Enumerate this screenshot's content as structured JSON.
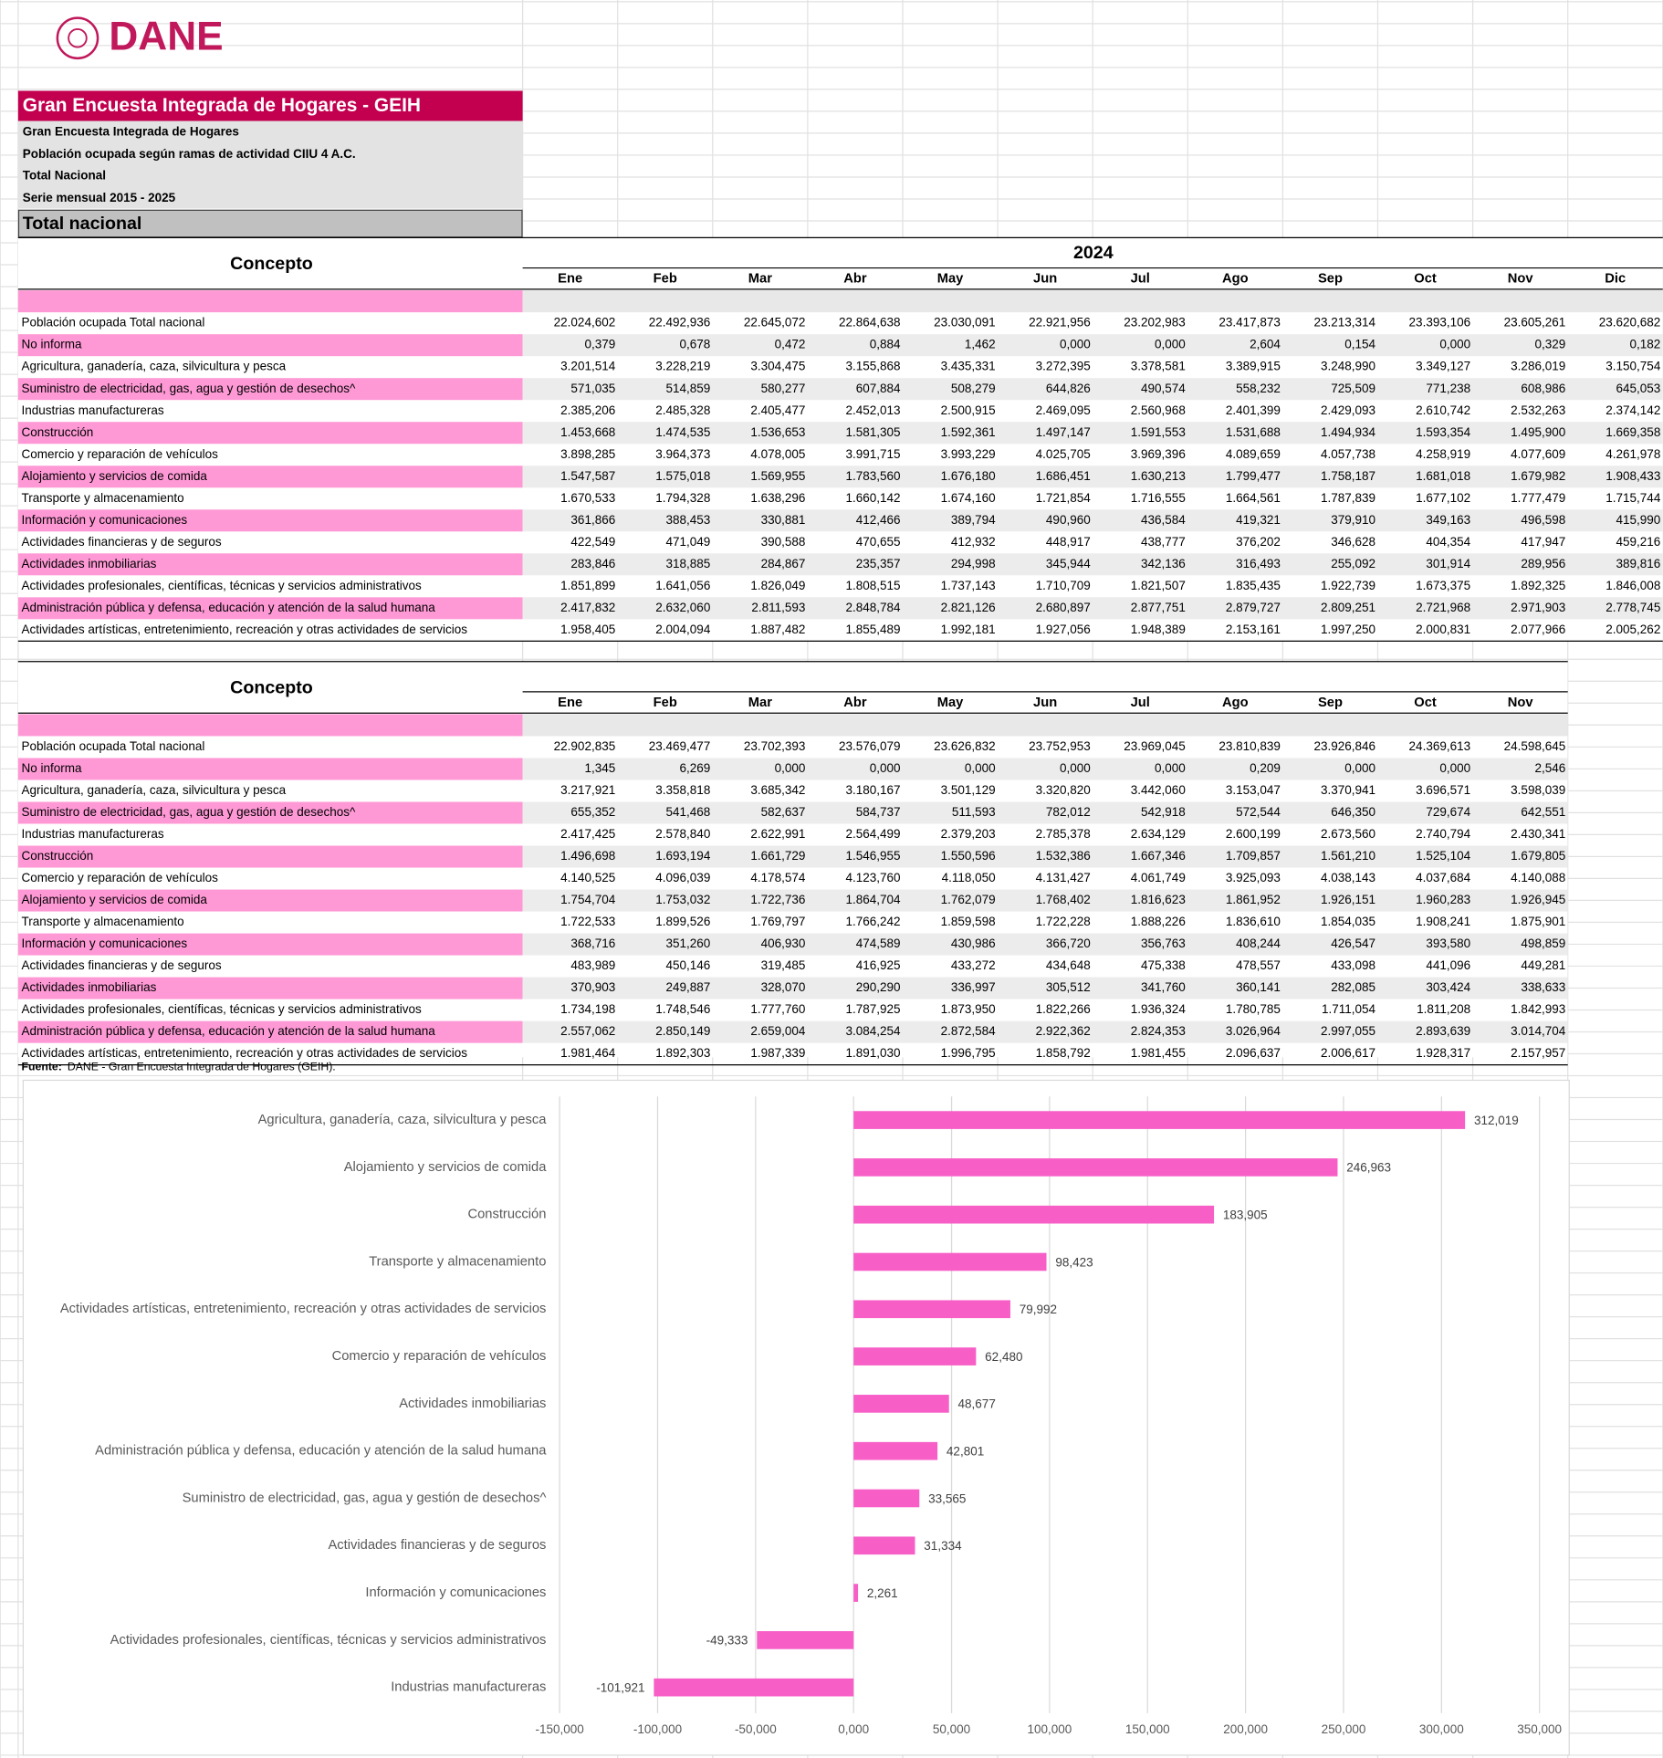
{
  "header": {
    "logo": "DANE",
    "title": "Gran Encuesta Integrada de Hogares - GEIH",
    "subtitles": [
      "Gran Encuesta Integrada de Hogares",
      "Población ocupada según ramas de actividad CIIU 4 A.C.",
      "Total Nacional",
      "Serie mensual 2015 - 2025"
    ],
    "section": "Total nacional"
  },
  "table1": {
    "concept": "Concepto",
    "year": "2024",
    "columns": [
      "Ene",
      "Feb",
      "Mar",
      "Abr",
      "May",
      "Jun",
      "Jul",
      "Ago",
      "Sep",
      "Oct",
      "Nov",
      "Dic"
    ],
    "rows": [
      {
        "label": "Población ocupada Total nacional",
        "values": [
          "22.024,602",
          "22.492,936",
          "22.645,072",
          "22.864,638",
          "23.030,091",
          "22.921,956",
          "23.202,983",
          "23.417,873",
          "23.213,314",
          "23.393,106",
          "23.605,261",
          "23.620,682"
        ]
      },
      {
        "label": "No informa",
        "values": [
          "0,379",
          "0,678",
          "0,472",
          "0,884",
          "1,462",
          "0,000",
          "0,000",
          "2,604",
          "0,154",
          "0,000",
          "0,329",
          "0,182"
        ]
      },
      {
        "label": "Agricultura, ganadería, caza, silvicultura y pesca",
        "values": [
          "3.201,514",
          "3.228,219",
          "3.304,475",
          "3.155,868",
          "3.435,331",
          "3.272,395",
          "3.378,581",
          "3.389,915",
          "3.248,990",
          "3.349,127",
          "3.286,019",
          "3.150,754"
        ]
      },
      {
        "label": "Suministro de electricidad, gas, agua y gestión de desechos^",
        "values": [
          "571,035",
          "514,859",
          "580,277",
          "607,884",
          "508,279",
          "644,826",
          "490,574",
          "558,232",
          "725,509",
          "771,238",
          "608,986",
          "645,053"
        ]
      },
      {
        "label": "Industrias manufactureras",
        "values": [
          "2.385,206",
          "2.485,328",
          "2.405,477",
          "2.452,013",
          "2.500,915",
          "2.469,095",
          "2.560,968",
          "2.401,399",
          "2.429,093",
          "2.610,742",
          "2.532,263",
          "2.374,142"
        ]
      },
      {
        "label": "Construcción",
        "values": [
          "1.453,668",
          "1.474,535",
          "1.536,653",
          "1.581,305",
          "1.592,361",
          "1.497,147",
          "1.591,553",
          "1.531,688",
          "1.494,934",
          "1.593,354",
          "1.495,900",
          "1.669,358"
        ]
      },
      {
        "label": "Comercio y reparación de vehículos",
        "values": [
          "3.898,285",
          "3.964,373",
          "4.078,005",
          "3.991,715",
          "3.993,229",
          "4.025,705",
          "3.969,396",
          "4.089,659",
          "4.057,738",
          "4.258,919",
          "4.077,609",
          "4.261,978"
        ]
      },
      {
        "label": "Alojamiento y servicios de comida",
        "values": [
          "1.547,587",
          "1.575,018",
          "1.569,955",
          "1.783,560",
          "1.676,180",
          "1.686,451",
          "1.630,213",
          "1.799,477",
          "1.758,187",
          "1.681,018",
          "1.679,982",
          "1.908,433"
        ]
      },
      {
        "label": "Transporte y almacenamiento",
        "values": [
          "1.670,533",
          "1.794,328",
          "1.638,296",
          "1.660,142",
          "1.674,160",
          "1.721,854",
          "1.716,555",
          "1.664,561",
          "1.787,839",
          "1.677,102",
          "1.777,479",
          "1.715,744"
        ]
      },
      {
        "label": "Información y comunicaciones",
        "values": [
          "361,866",
          "388,453",
          "330,881",
          "412,466",
          "389,794",
          "490,960",
          "436,584",
          "419,321",
          "379,910",
          "349,163",
          "496,598",
          "415,990"
        ]
      },
      {
        "label": "Actividades financieras y de seguros",
        "values": [
          "422,549",
          "471,049",
          "390,588",
          "470,655",
          "412,932",
          "448,917",
          "438,777",
          "376,202",
          "346,628",
          "404,354",
          "417,947",
          "459,216"
        ]
      },
      {
        "label": "Actividades inmobiliarias",
        "values": [
          "283,846",
          "318,885",
          "284,867",
          "235,357",
          "294,998",
          "345,944",
          "342,136",
          "316,493",
          "255,092",
          "301,914",
          "289,956",
          "389,816"
        ]
      },
      {
        "label": "Actividades profesionales, científicas, técnicas y servicios administrativos",
        "values": [
          "1.851,899",
          "1.641,056",
          "1.826,049",
          "1.808,515",
          "1.737,143",
          "1.710,709",
          "1.821,507",
          "1.835,435",
          "1.922,739",
          "1.673,375",
          "1.892,325",
          "1.846,008"
        ]
      },
      {
        "label": "Administración pública y defensa, educación y atención de la salud humana",
        "values": [
          "2.417,832",
          "2.632,060",
          "2.811,593",
          "2.848,784",
          "2.821,126",
          "2.680,897",
          "2.877,751",
          "2.879,727",
          "2.809,251",
          "2.721,968",
          "2.971,903",
          "2.778,745"
        ]
      },
      {
        "label": "Actividades artísticas, entretenimiento, recreación y otras actividades de servicios",
        "values": [
          "1.958,405",
          "2.004,094",
          "1.887,482",
          "1.855,489",
          "1.992,181",
          "1.927,056",
          "1.948,389",
          "2.153,161",
          "1.997,250",
          "2.000,831",
          "2.077,966",
          "2.005,262"
        ]
      }
    ]
  },
  "table2": {
    "concept": "Concepto",
    "columns": [
      "Ene",
      "Feb",
      "Mar",
      "Abr",
      "May",
      "Jun",
      "Jul",
      "Ago",
      "Sep",
      "Oct",
      "Nov"
    ],
    "rows": [
      {
        "label": "Población ocupada Total nacional",
        "values": [
          "22.902,835",
          "23.469,477",
          "23.702,393",
          "23.576,079",
          "23.626,832",
          "23.752,953",
          "23.969,045",
          "23.810,839",
          "23.926,846",
          "24.369,613",
          "24.598,645"
        ]
      },
      {
        "label": "No informa",
        "values": [
          "1,345",
          "6,269",
          "0,000",
          "0,000",
          "0,000",
          "0,000",
          "0,000",
          "0,209",
          "0,000",
          "0,000",
          "2,546"
        ]
      },
      {
        "label": "Agricultura, ganadería, caza, silvicultura y pesca",
        "values": [
          "3.217,921",
          "3.358,818",
          "3.685,342",
          "3.180,167",
          "3.501,129",
          "3.320,820",
          "3.442,060",
          "3.153,047",
          "3.370,941",
          "3.696,571",
          "3.598,039"
        ]
      },
      {
        "label": "Suministro de electricidad, gas, agua y gestión de desechos^",
        "values": [
          "655,352",
          "541,468",
          "582,637",
          "584,737",
          "511,593",
          "782,012",
          "542,918",
          "572,544",
          "646,350",
          "729,674",
          "642,551"
        ]
      },
      {
        "label": "Industrias manufactureras",
        "values": [
          "2.417,425",
          "2.578,840",
          "2.622,991",
          "2.564,499",
          "2.379,203",
          "2.785,378",
          "2.634,129",
          "2.600,199",
          "2.673,560",
          "2.740,794",
          "2.430,341"
        ]
      },
      {
        "label": "Construcción",
        "values": [
          "1.496,698",
          "1.693,194",
          "1.661,729",
          "1.546,955",
          "1.550,596",
          "1.532,386",
          "1.667,346",
          "1.709,857",
          "1.561,210",
          "1.525,104",
          "1.679,805"
        ]
      },
      {
        "label": "Comercio y reparación de vehículos",
        "values": [
          "4.140,525",
          "4.096,039",
          "4.178,574",
          "4.123,760",
          "4.118,050",
          "4.131,427",
          "4.061,749",
          "3.925,093",
          "4.038,143",
          "4.037,684",
          "4.140,088"
        ]
      },
      {
        "label": "Alojamiento y servicios de comida",
        "values": [
          "1.754,704",
          "1.753,032",
          "1.722,736",
          "1.864,704",
          "1.762,079",
          "1.768,402",
          "1.816,623",
          "1.861,952",
          "1.926,151",
          "1.960,283",
          "1.926,945"
        ]
      },
      {
        "label": "Transporte y almacenamiento",
        "values": [
          "1.722,533",
          "1.899,526",
          "1.769,797",
          "1.766,242",
          "1.859,598",
          "1.722,228",
          "1.888,226",
          "1.836,610",
          "1.854,035",
          "1.908,241",
          "1.875,901"
        ]
      },
      {
        "label": "Información y comunicaciones",
        "values": [
          "368,716",
          "351,260",
          "406,930",
          "474,589",
          "430,986",
          "366,720",
          "356,763",
          "408,244",
          "426,547",
          "393,580",
          "498,859"
        ]
      },
      {
        "label": "Actividades financieras y de seguros",
        "values": [
          "483,989",
          "450,146",
          "319,485",
          "416,925",
          "433,272",
          "434,648",
          "475,338",
          "478,557",
          "433,098",
          "441,096",
          "449,281"
        ]
      },
      {
        "label": "Actividades inmobiliarias",
        "values": [
          "370,903",
          "249,887",
          "328,070",
          "290,290",
          "336,997",
          "305,512",
          "341,760",
          "360,141",
          "282,085",
          "303,424",
          "338,633"
        ]
      },
      {
        "label": "Actividades profesionales, científicas, técnicas y servicios administrativos",
        "values": [
          "1.734,198",
          "1.748,546",
          "1.777,760",
          "1.787,925",
          "1.873,950",
          "1.822,266",
          "1.936,324",
          "1.780,785",
          "1.711,054",
          "1.811,208",
          "1.842,993"
        ]
      },
      {
        "label": "Administración pública y defensa, educación y atención de la salud humana",
        "values": [
          "2.557,062",
          "2.850,149",
          "2.659,004",
          "3.084,254",
          "2.872,584",
          "2.922,362",
          "2.824,353",
          "3.026,964",
          "2.997,055",
          "2.893,639",
          "3.014,704"
        ]
      },
      {
        "label": "Actividades artísticas, entretenimiento, recreación y otras actividades de servicios",
        "values": [
          "1.981,464",
          "1.892,303",
          "1.987,339",
          "1.891,030",
          "1.996,795",
          "1.858,792",
          "1.981,455",
          "2.096,637",
          "2.006,617",
          "1.928,317",
          "2.157,957"
        ]
      }
    ]
  },
  "source": {
    "label": "Fuente:",
    "text": "DANE - Gran Encuesta Integrada de Hogares (GEIH)."
  },
  "chart_data": {
    "type": "bar",
    "orientation": "horizontal",
    "color": "#f75fc7",
    "grid": true,
    "categories": [
      "Agricultura, ganadería, caza, silvicultura y pesca",
      "Alojamiento y servicios de comida",
      "Construcción",
      "Transporte y almacenamiento",
      "Actividades artísticas, entretenimiento, recreación y otras actividades de servicios",
      "Comercio y reparación de vehículos",
      "Actividades inmobiliarias",
      "Administración pública y defensa, educación y atención de la salud humana",
      "Suministro de electricidad, gas, agua y gestión de desechos^",
      "Actividades financieras y de seguros",
      "Información y comunicaciones",
      "Actividades profesionales, científicas, técnicas y servicios administrativos",
      "Industrias manufactureras"
    ],
    "values": [
      312019,
      246963,
      183905,
      98423,
      79992,
      62480,
      48677,
      42801,
      33565,
      31334,
      2261,
      -49333,
      -101921
    ],
    "value_labels": [
      "312,019",
      "246,963",
      "183,905",
      "98,423",
      "79,992",
      "62,480",
      "48,677",
      "42,801",
      "33,565",
      "31,334",
      "2,261",
      "-49,333",
      "-101,921"
    ],
    "xlim": [
      -150000,
      350000
    ],
    "xticks": [
      {
        "value": -150000,
        "label": "-150,000"
      },
      {
        "value": -100000,
        "label": "-100,000"
      },
      {
        "value": -50000,
        "label": "-50,000"
      },
      {
        "value": 0,
        "label": "0,000"
      },
      {
        "value": 50000,
        "label": "50,000"
      },
      {
        "value": 100000,
        "label": "100,000"
      },
      {
        "value": 150000,
        "label": "150,000"
      },
      {
        "value": 200000,
        "label": "200,000"
      },
      {
        "value": 250000,
        "label": "250,000"
      },
      {
        "value": 300000,
        "label": "300,000"
      },
      {
        "value": 350000,
        "label": "350,000"
      }
    ]
  }
}
